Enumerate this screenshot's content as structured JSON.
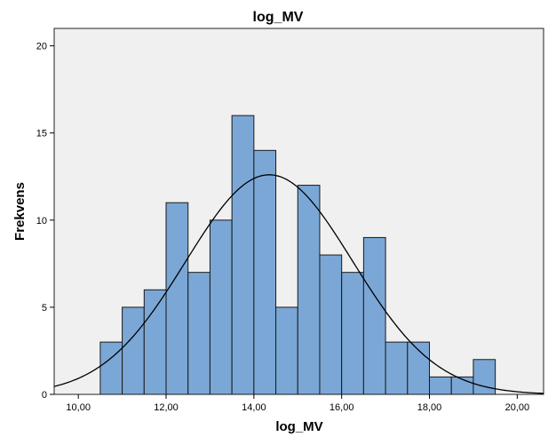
{
  "chart_data": {
    "type": "histogram",
    "title": "log_MV",
    "xlabel": "log_MV",
    "ylabel": "Frekvens",
    "xlim": [
      9.45,
      20.6
    ],
    "ylim": [
      0,
      21
    ],
    "x_ticks": [
      10,
      12,
      14,
      16,
      18,
      20
    ],
    "x_tick_labels": [
      "10,00",
      "12,00",
      "14,00",
      "16,00",
      "18,00",
      "20,00"
    ],
    "y_ticks": [
      0,
      5,
      10,
      15,
      20
    ],
    "y_tick_labels": [
      "0",
      "5",
      "10",
      "15",
      "20"
    ],
    "bin_width": 0.5,
    "bin_starts": [
      10.5,
      11.0,
      11.5,
      12.0,
      12.5,
      13.0,
      13.5,
      14.0,
      14.5,
      15.0,
      15.5,
      16.0,
      16.5,
      17.0,
      17.5,
      18.0,
      18.5,
      19.0
    ],
    "counts": [
      3,
      5,
      6,
      11,
      7,
      10,
      16,
      14,
      5,
      12,
      8,
      7,
      9,
      3,
      3,
      1,
      1,
      2
    ],
    "normal_curve": {
      "mean": 14.35,
      "sd": 1.9,
      "peak": 12.6
    },
    "grid": false,
    "colors": {
      "bar_fill": "#7ba7d6",
      "bar_stroke": "#1a1a1a",
      "plot_background": "#f0f0f0",
      "curve": "#000000"
    }
  }
}
